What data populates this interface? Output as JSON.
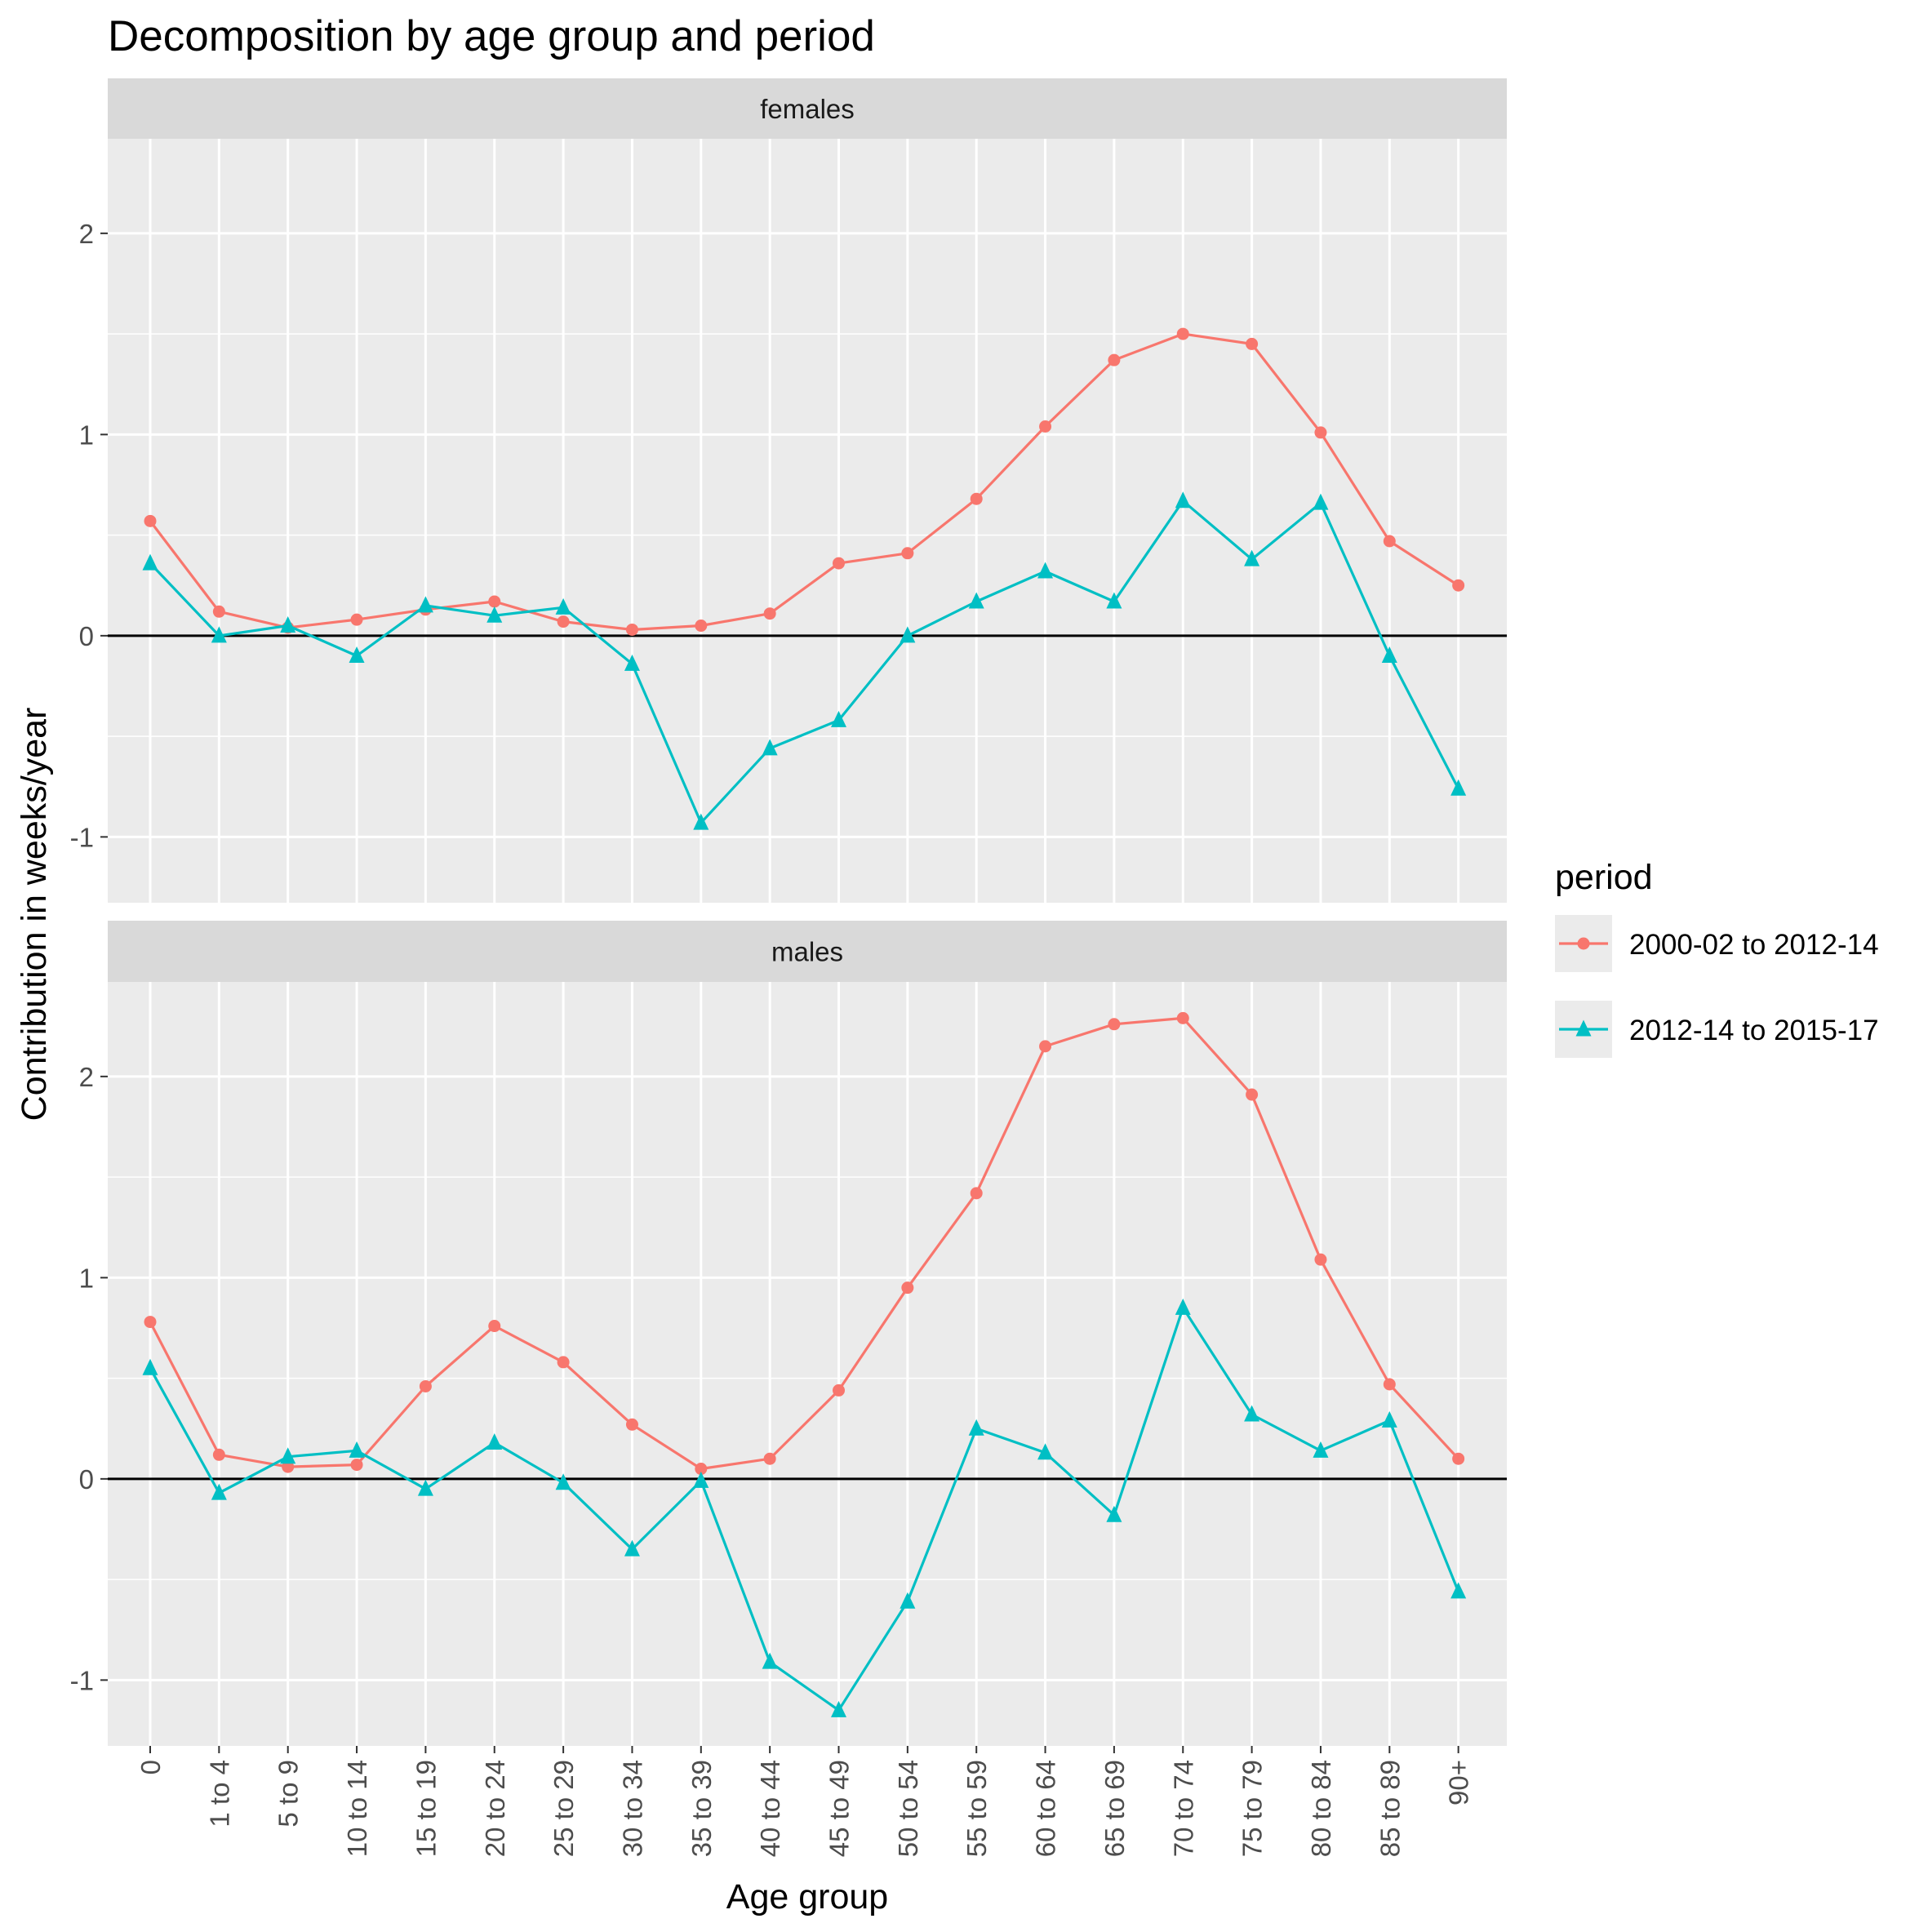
{
  "chart_data": {
    "type": "line",
    "title": "Decomposition by age group and period",
    "xlabel": "Age group",
    "ylabel": "Contribution in weeks/year",
    "categories": [
      "0",
      "1 to 4",
      "5 to 9",
      "10 to 14",
      "15 to 19",
      "20 to 24",
      "25 to 29",
      "30 to 34",
      "35 to 39",
      "40 to 44",
      "45 to 49",
      "50 to 54",
      "55 to 59",
      "60 to 64",
      "65 to 69",
      "70 to 74",
      "75 to 79",
      "80 to 84",
      "85 to 89",
      "90+"
    ],
    "ylim": [
      -1.33,
      2.47
    ],
    "yticks": [
      -1,
      0,
      1,
      2
    ],
    "yticklabels": [
      "-1",
      "0",
      "1",
      "2"
    ],
    "grid": true,
    "legend": {
      "title": "period",
      "placement": "right",
      "entries": [
        {
          "label": "2000-02 to 2012-14",
          "color": "#F8766D",
          "marker": "circle"
        },
        {
          "label": "2012-14 to 2015-17",
          "color": "#00BFC4",
          "marker": "triangle"
        }
      ]
    },
    "panels": [
      {
        "label": "females",
        "series": [
          {
            "name": "2000-02 to 2012-14",
            "color": "#F8766D",
            "marker": "circle",
            "values": [
              0.57,
              0.12,
              0.04,
              0.08,
              0.13,
              0.17,
              0.07,
              0.03,
              0.05,
              0.11,
              0.36,
              0.41,
              0.68,
              1.04,
              1.37,
              1.5,
              1.45,
              1.01,
              0.47,
              0.25
            ]
          },
          {
            "name": "2012-14 to 2015-17",
            "color": "#00BFC4",
            "marker": "triangle",
            "values": [
              0.36,
              0.0,
              0.05,
              -0.1,
              0.15,
              0.1,
              0.14,
              -0.14,
              -0.93,
              -0.56,
              -0.42,
              0.0,
              0.17,
              0.32,
              0.17,
              0.67,
              0.38,
              0.66,
              -0.1,
              -0.76
            ]
          }
        ]
      },
      {
        "label": "males",
        "series": [
          {
            "name": "2000-02 to 2012-14",
            "color": "#F8766D",
            "marker": "circle",
            "values": [
              0.78,
              0.12,
              0.06,
              0.07,
              0.46,
              0.76,
              0.58,
              0.27,
              0.05,
              0.1,
              0.44,
              0.95,
              1.42,
              2.15,
              2.26,
              2.29,
              1.91,
              1.09,
              0.47,
              0.1
            ]
          },
          {
            "name": "2012-14 to 2015-17",
            "color": "#00BFC4",
            "marker": "triangle",
            "values": [
              0.55,
              -0.07,
              0.11,
              0.14,
              -0.05,
              0.18,
              -0.02,
              -0.35,
              -0.01,
              -0.91,
              -1.15,
              -0.61,
              0.25,
              0.13,
              -0.18,
              0.85,
              0.32,
              0.14,
              0.29,
              -0.56
            ]
          }
        ]
      }
    ]
  }
}
